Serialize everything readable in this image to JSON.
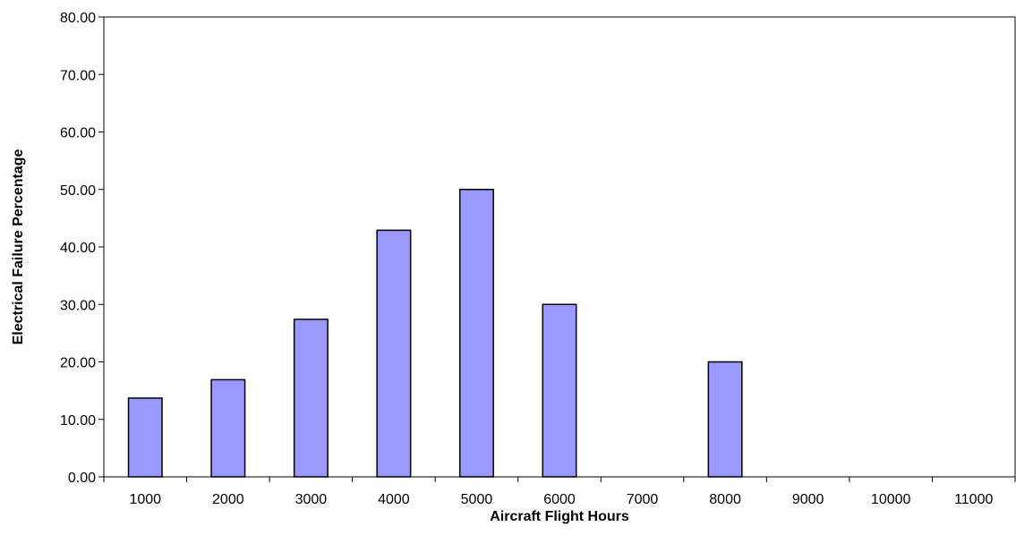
{
  "chart_data": {
    "type": "bar",
    "categories": [
      "1000",
      "2000",
      "3000",
      "4000",
      "5000",
      "6000",
      "7000",
      "8000",
      "9000",
      "10000",
      "11000"
    ],
    "values": [
      13.7,
      16.9,
      27.4,
      42.9,
      50.0,
      30.0,
      0,
      20.0,
      0,
      0,
      0
    ],
    "title": "",
    "xlabel": "Aircraft Flight Hours",
    "ylabel": "Electrical Failure Percentage",
    "ylim": [
      0,
      80
    ],
    "ytick_step": 10,
    "ytick_format": "2 decimals",
    "grid": false,
    "legend": "none",
    "bar_color": "#9999ff",
    "bar_edge_color": "#000000"
  }
}
